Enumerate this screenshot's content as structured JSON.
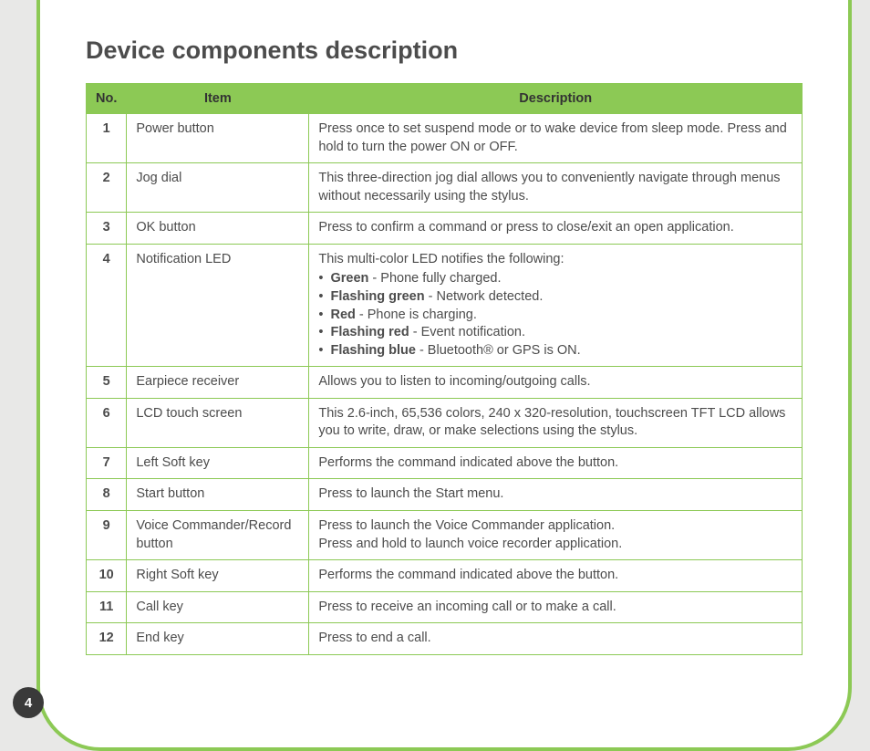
{
  "page": {
    "title": "Device components description",
    "page_number": "4",
    "colors": {
      "accent": "#8cc955",
      "page_bg": "#e8e8e7",
      "text": "#4c4c4c",
      "badge_bg": "#3a3a3a"
    }
  },
  "table": {
    "headers": {
      "no": "No.",
      "item": "Item",
      "description": "Description"
    },
    "rows": [
      {
        "no": "1",
        "item": "Power button",
        "desc": "Press once to set suspend mode or to wake device from sleep mode. Press and hold to turn the power ON or OFF."
      },
      {
        "no": "2",
        "item": "Jog dial",
        "desc": "This three-direction jog dial allows you to conveniently navigate through menus without necessarily using the stylus."
      },
      {
        "no": "3",
        "item": "OK button",
        "desc": "Press to confirm a command or press to close/exit an open application."
      },
      {
        "no": "4",
        "item": "Notification LED",
        "desc_intro": "This multi-color LED notifies the following:",
        "led": [
          {
            "label": "Green",
            "text": " - Phone fully charged."
          },
          {
            "label": "Flashing green",
            "text": " - Network detected."
          },
          {
            "label": "Red",
            "text": " - Phone is charging."
          },
          {
            "label": "Flashing red",
            "text": " - Event notification."
          },
          {
            "label": "Flashing blue",
            "text": " - Bluetooth® or GPS is ON."
          }
        ]
      },
      {
        "no": "5",
        "item": "Earpiece receiver",
        "desc": "Allows you to listen to incoming/outgoing calls."
      },
      {
        "no": "6",
        "item": "LCD touch screen",
        "desc": "This 2.6-inch, 65,536 colors, 240 x 320-resolution, touchscreen TFT LCD allows you to write, draw, or make selections using the stylus."
      },
      {
        "no": "7",
        "item": "Left Soft key",
        "desc": "Performs the command indicated above the button."
      },
      {
        "no": "8",
        "item": "Start button",
        "desc": "Press to launch the Start menu."
      },
      {
        "no": "9",
        "item": "Voice Commander/Record button",
        "desc_lines": [
          "Press to launch the Voice Commander application.",
          "Press and hold to launch voice recorder application."
        ]
      },
      {
        "no": "10",
        "item": "Right Soft key",
        "desc": "Performs the command indicated above the button."
      },
      {
        "no": "11",
        "item": "Call key",
        "desc": "Press to receive an incoming call or to make a call."
      },
      {
        "no": "12",
        "item": "End key",
        "desc": "Press to end a call."
      }
    ]
  }
}
